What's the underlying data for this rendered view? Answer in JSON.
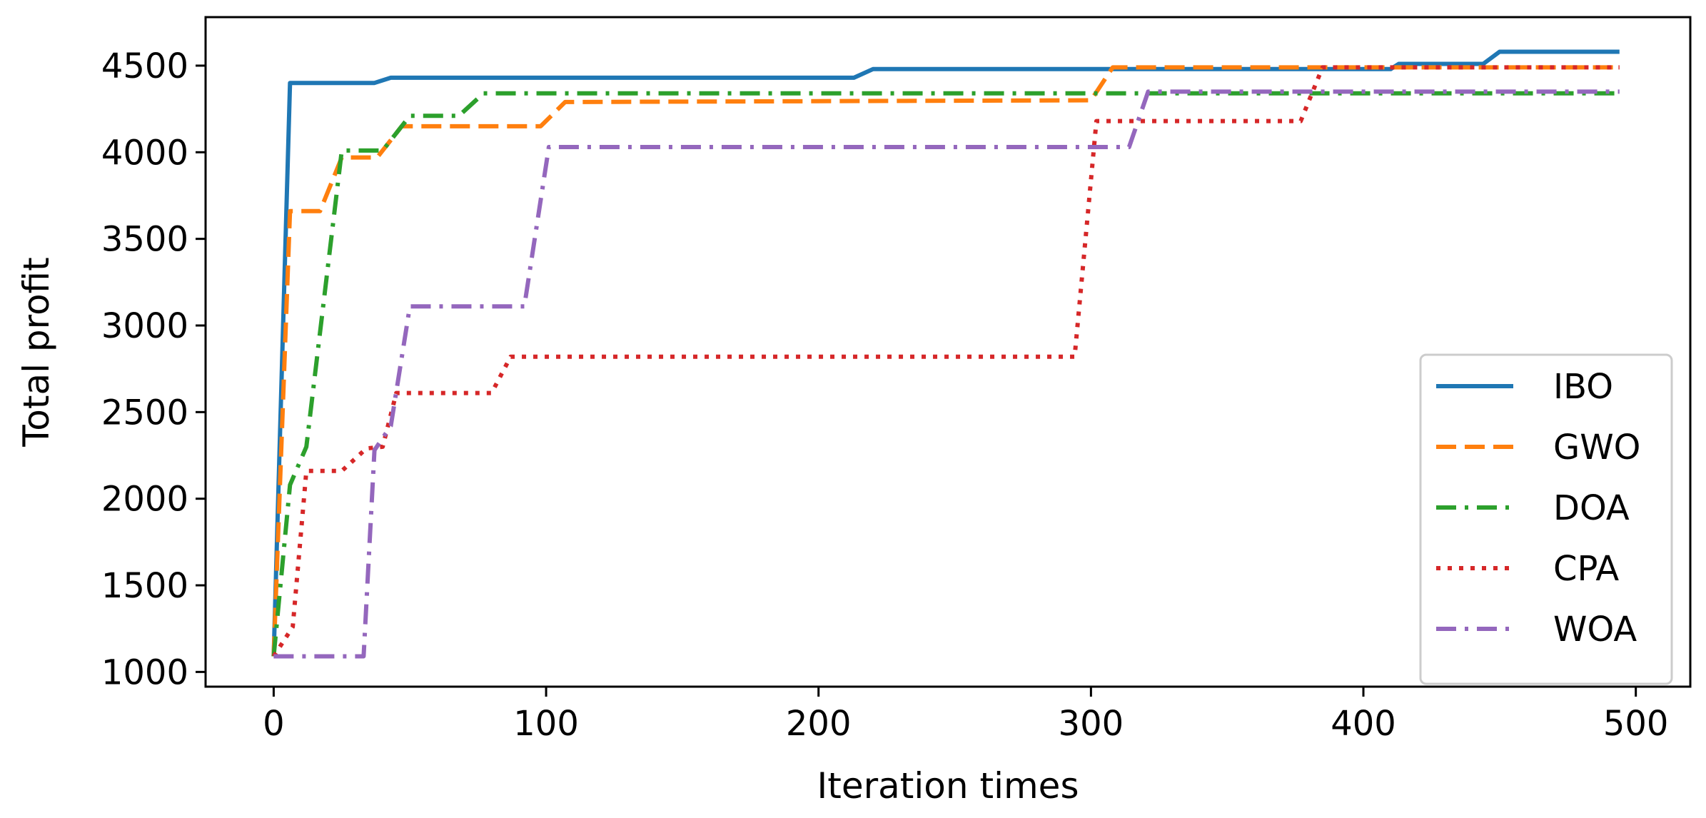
{
  "chart_data": {
    "type": "line",
    "title": "",
    "xlabel": "Iteration times",
    "ylabel": "Total profit",
    "xlim": [
      -25,
      520
    ],
    "ylim": [
      915,
      4780
    ],
    "xticks": [
      0,
      100,
      200,
      300,
      400,
      500
    ],
    "yticks": [
      1000,
      1500,
      2000,
      2500,
      3000,
      3500,
      4000,
      4500
    ],
    "grid": false,
    "legend": "lower-right",
    "series": [
      {
        "name": "IBO",
        "color": "#1f77b4",
        "dash": "solid",
        "points": [
          [
            0,
            1090
          ],
          [
            6,
            4400
          ],
          [
            37,
            4400
          ],
          [
            43,
            4430
          ],
          [
            213,
            4430
          ],
          [
            220,
            4480
          ],
          [
            410,
            4480
          ],
          [
            413,
            4510
          ],
          [
            444,
            4510
          ],
          [
            450,
            4580
          ],
          [
            494,
            4580
          ]
        ]
      },
      {
        "name": "GWO",
        "color": "#ff7f0e",
        "dash": "dashed",
        "points": [
          [
            0,
            1090
          ],
          [
            6,
            3660
          ],
          [
            17,
            3660
          ],
          [
            25,
            3970
          ],
          [
            38,
            3970
          ],
          [
            47,
            4150
          ],
          [
            98,
            4150
          ],
          [
            107,
            4290
          ],
          [
            300,
            4300
          ],
          [
            308,
            4490
          ],
          [
            494,
            4490
          ]
        ]
      },
      {
        "name": "DOA",
        "color": "#2ca02c",
        "dash": "dashdot",
        "points": [
          [
            0,
            1090
          ],
          [
            6,
            2080
          ],
          [
            12,
            2300
          ],
          [
            25,
            4010
          ],
          [
            40,
            4010
          ],
          [
            50,
            4210
          ],
          [
            68,
            4210
          ],
          [
            77,
            4340
          ],
          [
            494,
            4340
          ]
        ]
      },
      {
        "name": "CPA",
        "color": "#d62728",
        "dash": "dotted",
        "points": [
          [
            0,
            1090
          ],
          [
            7,
            1260
          ],
          [
            12,
            2160
          ],
          [
            25,
            2160
          ],
          [
            34,
            2290
          ],
          [
            40,
            2300
          ],
          [
            45,
            2610
          ],
          [
            80,
            2610
          ],
          [
            87,
            2820
          ],
          [
            294,
            2820
          ],
          [
            302,
            4180
          ],
          [
            377,
            4180
          ],
          [
            385,
            4490
          ],
          [
            494,
            4490
          ]
        ]
      },
      {
        "name": "WOA",
        "color": "#9467bd",
        "dash": "dashdot",
        "points": [
          [
            0,
            1090
          ],
          [
            33,
            1090
          ],
          [
            37,
            2280
          ],
          [
            43,
            2420
          ],
          [
            50,
            3110
          ],
          [
            92,
            3110
          ],
          [
            101,
            4030
          ],
          [
            314,
            4030
          ],
          [
            321,
            4350
          ],
          [
            494,
            4350
          ]
        ]
      }
    ]
  }
}
